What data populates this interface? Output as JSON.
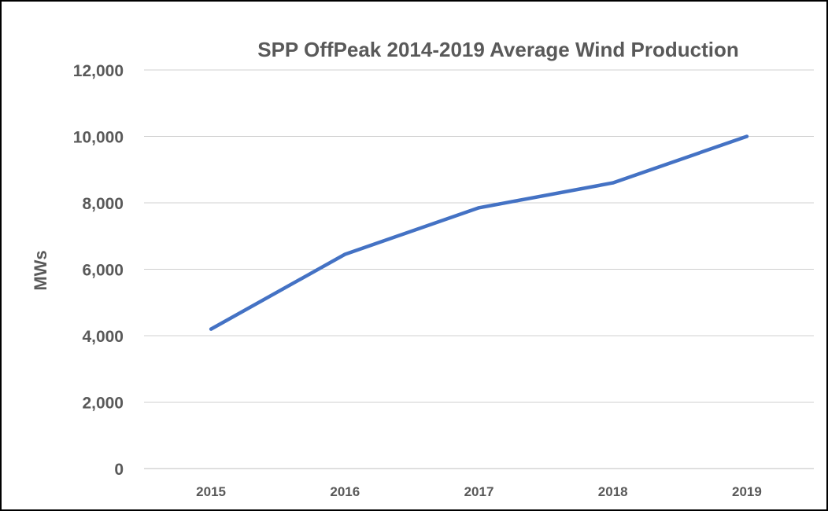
{
  "chart_data": {
    "type": "line",
    "title": "SPP OffPeak 2014-2019 Average Wind Production",
    "xlabel": "",
    "ylabel": "MWs",
    "categories": [
      "2015",
      "2016",
      "2017",
      "2018",
      "2019"
    ],
    "series": [
      {
        "values": [
          4200,
          6450,
          7850,
          8600,
          10000
        ],
        "color": "#4472c4"
      }
    ],
    "ylim": [
      0,
      12000
    ],
    "yticks": [
      0,
      2000,
      4000,
      6000,
      8000,
      10000,
      12000
    ],
    "ytick_labels": [
      "0",
      "2,000",
      "4,000",
      "6,000",
      "8,000",
      "10,000",
      "12,000"
    ],
    "grid": true,
    "legend": "none"
  }
}
